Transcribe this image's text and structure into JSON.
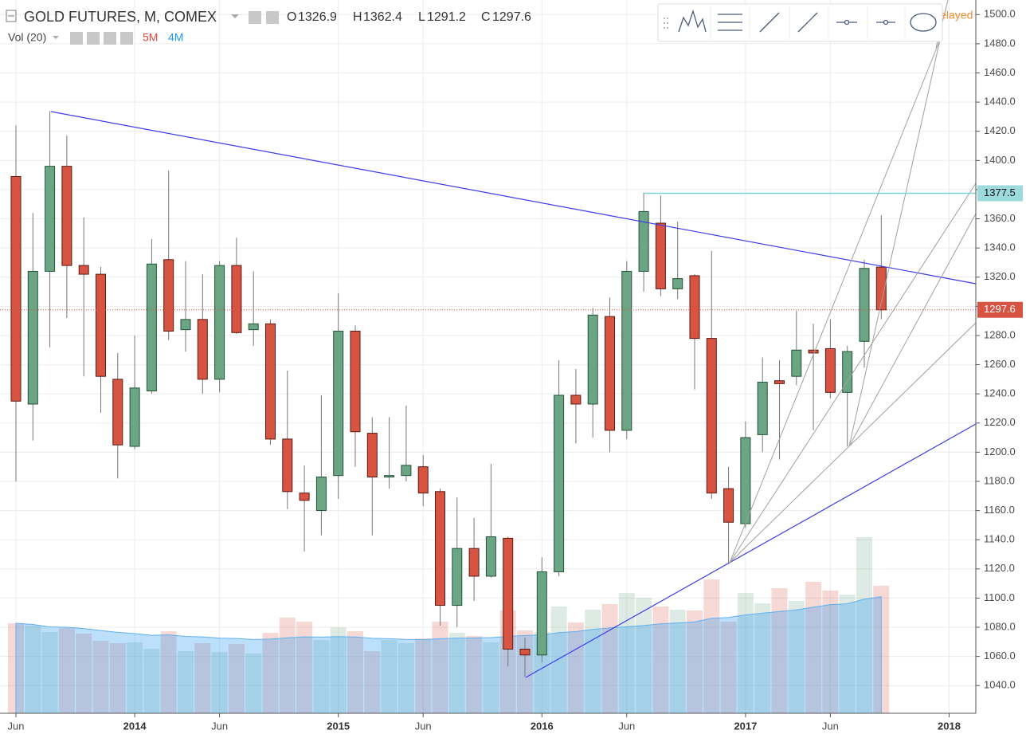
{
  "chart_data": {
    "type": "candlestick",
    "title": "GOLD FUTURES, M, COMEX",
    "ohlc_letters": [
      "O",
      "H",
      "L",
      "C"
    ],
    "volume_title": "Vol (20)",
    "volume_labels": [
      "5M",
      "4M"
    ],
    "delayed": "Delayed",
    "x": [
      "2013-06",
      "2013-07",
      "2013-08",
      "2013-09",
      "2013-10",
      "2013-11",
      "2013-12",
      "2014-01",
      "2014-02",
      "2014-03",
      "2014-04",
      "2014-05",
      "2014-06",
      "2014-07",
      "2014-08",
      "2014-09",
      "2014-10",
      "2014-11",
      "2014-12",
      "2015-01",
      "2015-02",
      "2015-03",
      "2015-04",
      "2015-05",
      "2015-06",
      "2015-07",
      "2015-08",
      "2015-09",
      "2015-10",
      "2015-11",
      "2015-12",
      "2016-01",
      "2016-02",
      "2016-03",
      "2016-04",
      "2016-05",
      "2016-06",
      "2016-07",
      "2016-08",
      "2016-09",
      "2016-10",
      "2016-11",
      "2016-12",
      "2017-01",
      "2017-02",
      "2017-03",
      "2017-04",
      "2017-05",
      "2017-06",
      "2017-07",
      "2017-08",
      "2017-09"
    ],
    "candles": {
      "open": [
        1389,
        1233,
        1324,
        1396,
        1328,
        1322,
        1250,
        1204,
        1242,
        1332,
        1284,
        1291,
        1250,
        1328,
        1284,
        1288,
        1209,
        1172,
        1160,
        1184,
        1283,
        1213,
        1183,
        1184,
        1190,
        1173,
        1095,
        1134,
        1115,
        1141,
        1065,
        1061,
        1118,
        1239,
        1233,
        1293,
        1215,
        1324,
        1357,
        1312,
        1321,
        1278,
        1175,
        1151,
        1212,
        1249,
        1252,
        1270,
        1271,
        1241,
        1276,
        1326.9
      ],
      "high": [
        1424,
        1364,
        1434,
        1417,
        1361,
        1327,
        1268,
        1280,
        1346,
        1393,
        1331,
        1322,
        1331,
        1347,
        1324,
        1291,
        1256,
        1191,
        1239,
        1309,
        1287,
        1224,
        1224,
        1232,
        1198,
        1175,
        1169,
        1155,
        1192,
        1142,
        1073,
        1128,
        1263,
        1257,
        1299,
        1306,
        1331,
        1378,
        1376,
        1358,
        1322,
        1338,
        1190,
        1221,
        1265,
        1263,
        1297,
        1288,
        1291,
        1273,
        1332,
        1362.4
      ],
      "low": [
        1180,
        1208,
        1272,
        1292,
        1252,
        1227,
        1182,
        1202,
        1240,
        1277,
        1269,
        1240,
        1241,
        1281,
        1273,
        1205,
        1161,
        1132,
        1143,
        1168,
        1190,
        1143,
        1175,
        1180,
        1163,
        1081,
        1080,
        1098,
        1114,
        1053,
        1046,
        1056,
        1115,
        1206,
        1210,
        1200,
        1209,
        1310,
        1307,
        1305,
        1243,
        1168,
        1124,
        1148,
        1200,
        1195,
        1246,
        1215,
        1237,
        1204,
        1258,
        1291.2
      ],
      "close": [
        1235,
        1324,
        1396,
        1328,
        1322,
        1252,
        1205,
        1244,
        1329,
        1283,
        1291,
        1250,
        1328,
        1282,
        1288,
        1209,
        1173,
        1167,
        1183,
        1283,
        1214,
        1183,
        1184,
        1191,
        1172,
        1095,
        1134,
        1115,
        1142,
        1065,
        1061,
        1118,
        1239,
        1233,
        1294,
        1215,
        1324,
        1365,
        1312,
        1319,
        1278,
        1172,
        1152,
        1210,
        1248,
        1247,
        1270,
        1268,
        1241,
        1269,
        1326,
        1297.6
      ]
    },
    "volume": [
      113,
      110,
      102,
      107,
      100,
      91,
      88,
      89,
      81,
      103,
      78,
      88,
      77,
      87,
      75,
      101,
      120,
      115,
      92,
      108,
      103,
      78,
      92,
      88,
      94,
      115,
      101,
      97,
      89,
      129,
      104,
      102,
      134,
      114,
      130,
      137,
      151,
      145,
      134,
      130,
      129,
      168,
      115,
      151,
      138,
      157,
      141,
      165,
      154,
      149,
      221,
      160
    ],
    "vlim": [
      0,
      300
    ],
    "up_color": "#6ba583",
    "down_color": "#d75442",
    "hline": 1377.5,
    "ylim": [
      1021,
      1510
    ],
    "yticks": [
      {
        "value": 1040,
        "label": "1040.0"
      },
      {
        "value": 1060,
        "label": "1060.0"
      },
      {
        "value": 1080,
        "label": "1080.0"
      },
      {
        "value": 1100,
        "label": "1100.0"
      },
      {
        "value": 1120,
        "label": "1120.0"
      },
      {
        "value": 1140,
        "label": "1140.0"
      },
      {
        "value": 1160,
        "label": "1160.0"
      },
      {
        "value": 1180,
        "label": "1180.0"
      },
      {
        "value": 1200,
        "label": "1200.0"
      },
      {
        "value": 1220,
        "label": "1220.0"
      },
      {
        "value": 1240,
        "label": "1240.0"
      },
      {
        "value": 1260,
        "label": "1260.0"
      },
      {
        "value": 1280,
        "label": "1280.0"
      },
      {
        "value": 1300,
        "label": "1300.0"
      },
      {
        "value": 1320,
        "label": "1320.0"
      },
      {
        "value": 1340,
        "label": "1340.0"
      },
      {
        "value": 1360,
        "label": "1360.0"
      },
      {
        "value": 1380,
        "label": "1380.0"
      },
      {
        "value": 1400,
        "label": "1400.0"
      },
      {
        "value": 1420,
        "label": "1420.0"
      },
      {
        "value": 1440,
        "label": "1440.0"
      },
      {
        "value": 1460,
        "label": "1460.0"
      },
      {
        "value": 1480,
        "label": "1480.0"
      },
      {
        "value": 1500,
        "label": "1500.0"
      }
    ],
    "xticks": [
      {
        "value": "2013-06",
        "label": "Jun"
      },
      {
        "value": "2014-01",
        "label": "2014"
      },
      {
        "value": "2014-06",
        "label": "Jun"
      },
      {
        "value": "2015-01",
        "label": "2015"
      },
      {
        "value": "2015-06",
        "label": "Jun"
      },
      {
        "value": "2016-01",
        "label": "2016"
      },
      {
        "value": "2016-06",
        "label": "Jun"
      },
      {
        "value": "2017-01",
        "label": "2017"
      },
      {
        "value": "2017-06",
        "label": "Jun"
      },
      {
        "value": "2018-01",
        "label": "2018"
      }
    ],
    "grid": true
  }
}
